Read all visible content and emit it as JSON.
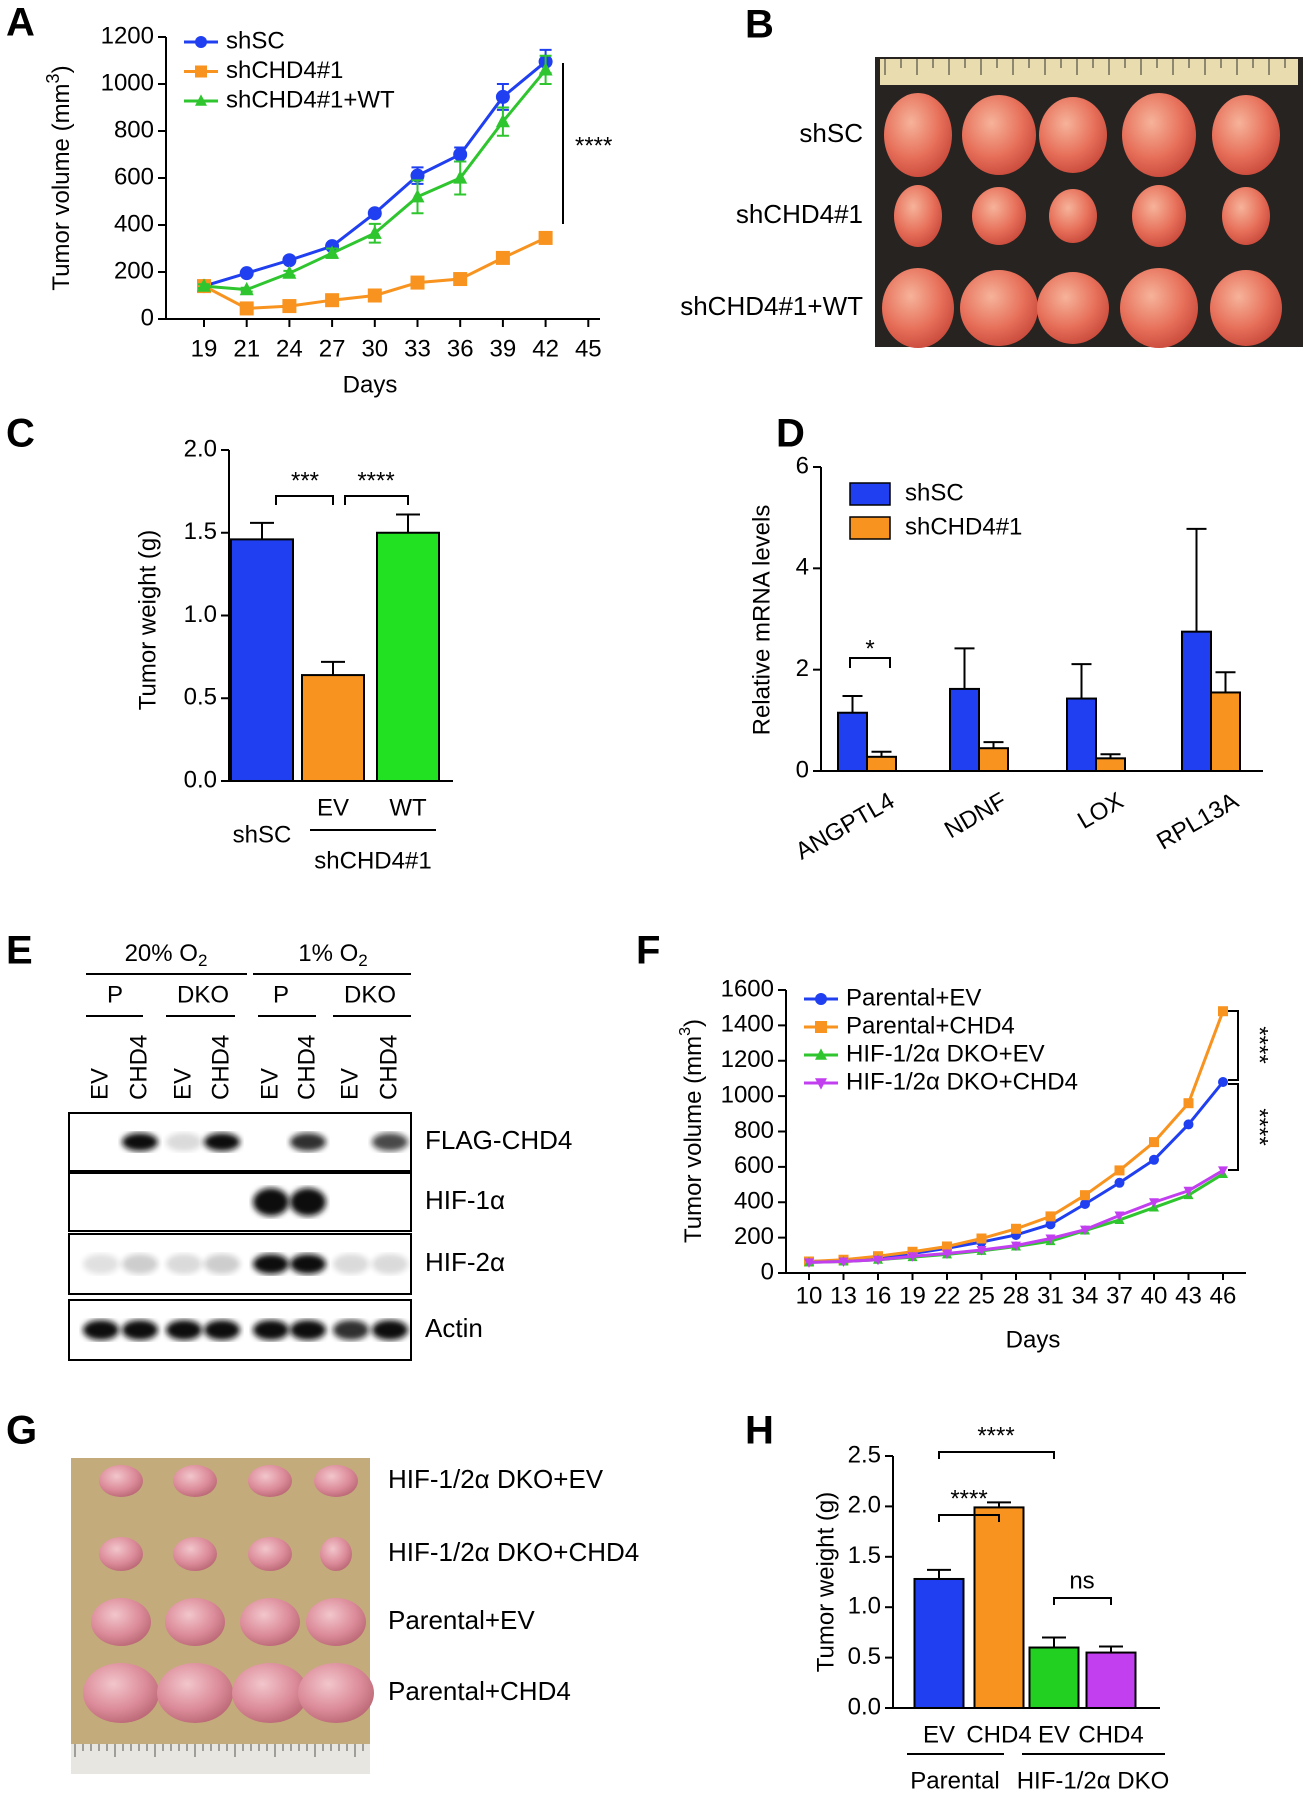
{
  "panel_labels": [
    "A",
    "B",
    "C",
    "D",
    "E",
    "F",
    "G",
    "H"
  ],
  "chart_data": [
    {
      "type": "line",
      "ylabel": [
        "Tumor volume (mm",
        "3",
        ")"
      ],
      "xlabel": "Days",
      "categories": [
        "19",
        "21",
        "24",
        "27",
        "30",
        "33",
        "36",
        "39",
        "42",
        "45"
      ],
      "series": [
        {
          "name": "shSC",
          "color": "#1f3ff0",
          "marker": "circle",
          "values": [
            140,
            195,
            250,
            310,
            450,
            610,
            700,
            945,
            1095,
            null
          ],
          "errors": [
            8,
            8,
            10,
            12,
            12,
            35,
            30,
            55,
            50,
            null
          ]
        },
        {
          "name": "shCHD4#1",
          "color": "#f7931e",
          "marker": "square",
          "values": [
            140,
            45,
            55,
            80,
            100,
            155,
            170,
            260,
            345,
            null
          ],
          "errors": [
            8,
            5,
            5,
            5,
            5,
            8,
            8,
            10,
            10,
            null
          ]
        },
        {
          "name": "shCHD4#1+WT",
          "color": "#2ec52e",
          "marker": "triangle",
          "values": [
            140,
            125,
            195,
            280,
            365,
            520,
            600,
            840,
            1060,
            null
          ],
          "errors": [
            8,
            8,
            10,
            20,
            40,
            70,
            70,
            60,
            60,
            null
          ]
        }
      ],
      "ylim": [
        0,
        1200
      ],
      "yticks": [
        0,
        200,
        400,
        600,
        800,
        1000,
        1200
      ],
      "legend": "upper left",
      "annotations": [
        "****"
      ]
    },
    {
      "type": "bar",
      "ylabel": "Tumor weight (g)",
      "categories": [
        "shSC",
        "EV",
        "WT"
      ],
      "group_label": "shCHD4#1",
      "values": [
        1.46,
        0.64,
        1.5
      ],
      "errors": [
        0.1,
        0.08,
        0.11
      ],
      "colors": [
        "#1f3ff0",
        "#f7931e",
        "#22e022"
      ],
      "ylim": [
        0,
        2
      ],
      "yticks": [
        {
          "value": 0,
          "label": "0.0"
        },
        {
          "value": 0.5,
          "label": "0.5"
        },
        {
          "value": 1,
          "label": "1.0"
        },
        {
          "value": 1.5,
          "label": "1.5"
        },
        {
          "value": 2,
          "label": "2.0"
        }
      ],
      "annotations": [
        "***",
        "****"
      ]
    },
    {
      "type": "grouped_bar",
      "ylabel": "Relative mRNA levels",
      "categories": [
        "ANGPTL4",
        "NDNF",
        "LOX",
        "RPL13A"
      ],
      "series": [
        {
          "name": "shSC",
          "color": "#1f3ff0",
          "values": [
            1.15,
            1.62,
            1.43,
            2.75
          ],
          "errors": [
            0.33,
            0.8,
            0.68,
            2.03
          ]
        },
        {
          "name": "shCHD4#1",
          "color": "#f7931e",
          "values": [
            0.28,
            0.45,
            0.25,
            1.55
          ],
          "errors": [
            0.1,
            0.12,
            0.08,
            0.4
          ]
        }
      ],
      "ylim": [
        0,
        6
      ],
      "yticks": [
        0,
        2,
        4,
        6
      ],
      "legend": "upper left",
      "annotations": [
        "*"
      ]
    },
    {
      "type": "line",
      "ylabel": [
        "Tumor volume (mm",
        "3",
        ")"
      ],
      "xlabel": "Days",
      "x": [
        10,
        13,
        16,
        19,
        22,
        25,
        28,
        31,
        34,
        37,
        40,
        43,
        46
      ],
      "series": [
        {
          "name": "Parental+EV",
          "color": "#1f3ff0",
          "marker": "circle",
          "values": [
            65,
            70,
            85,
            110,
            140,
            175,
            215,
            275,
            390,
            510,
            640,
            840,
            1080
          ]
        },
        {
          "name": "Parental+CHD4",
          "color": "#f7931e",
          "marker": "square",
          "values": [
            65,
            75,
            95,
            120,
            150,
            195,
            250,
            320,
            440,
            580,
            740,
            960,
            1480
          ]
        },
        {
          "name": "HIF-1/2α DKO+EV",
          "color": "#2ec52e",
          "marker": "triangle",
          "values": [
            60,
            65,
            75,
            90,
            105,
            125,
            150,
            180,
            240,
            300,
            370,
            440,
            560
          ]
        },
        {
          "name": "HIF-1/2α DKO+CHD4",
          "color": "#c23ff0",
          "marker": "triangle-down",
          "values": [
            60,
            65,
            75,
            95,
            110,
            130,
            155,
            195,
            245,
            325,
            400,
            465,
            580
          ]
        }
      ],
      "xlim": [
        8,
        48
      ],
      "xticks": [
        10,
        13,
        16,
        19,
        22,
        25,
        28,
        31,
        34,
        37,
        40,
        43,
        46
      ],
      "ylim": [
        0,
        1600
      ],
      "yticks": [
        0,
        200,
        400,
        600,
        800,
        1000,
        1200,
        1400,
        1600
      ],
      "legend": "upper left",
      "annotations": [
        "****",
        "****"
      ]
    },
    {
      "type": "bar",
      "ylabel": "Tumor weight (g)",
      "categories": [
        "EV",
        "CHD4",
        "EV",
        "CHD4"
      ],
      "groups": [
        "Parental",
        "HIF-1/2α DKO"
      ],
      "values": [
        1.28,
        1.99,
        0.6,
        0.55
      ],
      "errors": [
        0.09,
        0.05,
        0.1,
        0.06
      ],
      "colors": [
        "#1f3ff0",
        "#f7931e",
        "#22d022",
        "#c23ff0"
      ],
      "ylim": [
        0,
        2.5
      ],
      "yticks": [
        {
          "value": 0,
          "label": "0.0"
        },
        {
          "value": 0.5,
          "label": "0.5"
        },
        {
          "value": 1,
          "label": "1.0"
        },
        {
          "value": 1.5,
          "label": "1.5"
        },
        {
          "value": 2,
          "label": "2.0"
        },
        {
          "value": 2.5,
          "label": "2.5"
        }
      ],
      "annotations": [
        "****",
        "****",
        "ns"
      ]
    }
  ],
  "photo_b": {
    "rows": [
      "shSC",
      "shCHD4#1",
      "shCHD4#1+WT"
    ]
  },
  "blot_e": {
    "conditions": [
      [
        "20% O",
        "2"
      ],
      [
        "1% O",
        "2"
      ]
    ],
    "groups": [
      "P",
      "DKO",
      "P",
      "DKO"
    ],
    "lanes": [
      "EV",
      "CHD4",
      "EV",
      "CHD4",
      "EV",
      "CHD4",
      "EV",
      "CHD4"
    ],
    "rows": [
      "FLAG-CHD4",
      "HIF-1α",
      "HIF-2α",
      "Actin"
    ]
  },
  "photo_g": {
    "rows": [
      "HIF-1/2α DKO+EV",
      "HIF-1/2α DKO+CHD4",
      "Parental+EV",
      "Parental+CHD4"
    ]
  }
}
